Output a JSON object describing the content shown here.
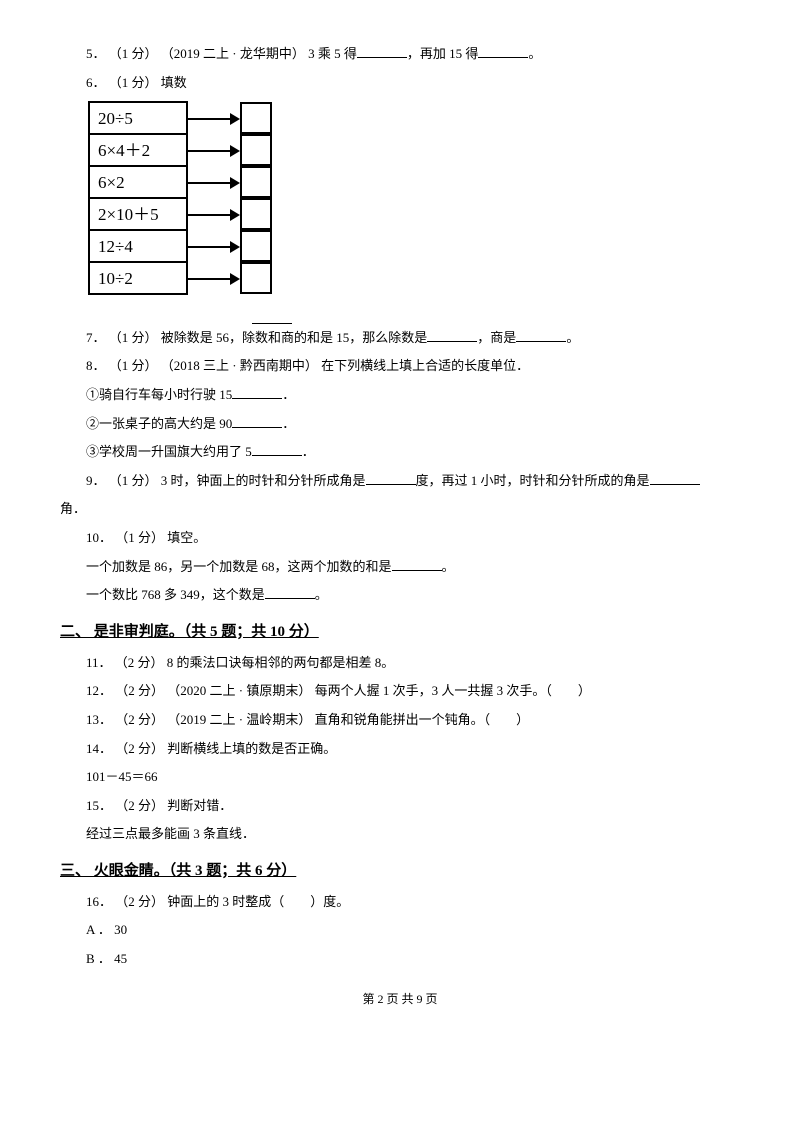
{
  "q5": {
    "num": "5．",
    "pts": "（1 分）",
    "src": "（2019 二上 · 龙华期中）",
    "t1": "3 乘 5 得",
    "t2": "，再加 15 得",
    "t3": "。"
  },
  "q6": {
    "num": "6．",
    "pts": "（1 分）",
    "title": " 填数",
    "rows": [
      "20÷5",
      "6×4＋2",
      "6×2",
      "2×10＋5",
      "12÷4",
      "10÷2"
    ]
  },
  "q7": {
    "num": "7．",
    "pts": "（1 分）",
    "t1": " 被除数是 56，除数和商的和是 15，那么除数是",
    "t2": "，商是",
    "t3": "。"
  },
  "q8": {
    "num": "8．",
    "pts": "（1 分）",
    "src": "（2018 三上 · 黔西南期中）",
    "title": "在下列横线上填上合适的长度单位．",
    "s1a": "①骑自行车每小时行驶 15",
    "s1b": "．",
    "s2a": "②一张桌子的高大约是 90",
    "s2b": "．",
    "s3a": "③学校周一升国旗大约用了 5",
    "s3b": "．"
  },
  "q9": {
    "num": "9．",
    "pts": "（1 分）",
    "t1": " 3 时，钟面上的时针和分针所成角是",
    "t2": "度，再过 1 小时，时针和分针所成的角是",
    "tail": "角．"
  },
  "q10": {
    "num": "10．",
    "pts": "（1 分）",
    "title": " 填空。",
    "s1a": "一个加数是 86，另一个加数是 68，这两个加数的和是",
    "s1b": "。",
    "s2a": "一个数比 768 多 349，这个数是",
    "s2b": "。"
  },
  "sec2": "二、 是非审判庭。（共 5 题；共 10 分）",
  "q11": {
    "num": "11．",
    "pts": "（2 分）",
    "t": " 8 的乘法口诀每相邻的两句都是相差 8。"
  },
  "q12": {
    "num": "12．",
    "pts": "（2 分）",
    "src": "（2020 二上 · 镇原期末）",
    "t": "每两个人握 1 次手，3 人一共握 3 次手。（　　）"
  },
  "q13": {
    "num": "13．",
    "pts": "（2 分）",
    "src": "（2019 二上 · 温岭期末）",
    "t": "直角和锐角能拼出一个钝角。（　　）"
  },
  "q14": {
    "num": "14．",
    "pts": "（2 分）",
    "t": " 判断横线上填的数是否正确。",
    "eq": "101－45＝66"
  },
  "q15": {
    "num": "15．",
    "pts": "（2 分）",
    "t": " 判断对错．",
    "s": "经过三点最多能画 3 条直线．"
  },
  "sec3": "三、 火眼金睛。（共 3 题；共 6 分）",
  "q16": {
    "num": "16．",
    "pts": "（2 分）",
    "t": " 钟面上的 3 时整成（　　）度。",
    "optA": "A ． 30",
    "optB": "B ． 45"
  },
  "footer": "第 2 页 共 9 页"
}
